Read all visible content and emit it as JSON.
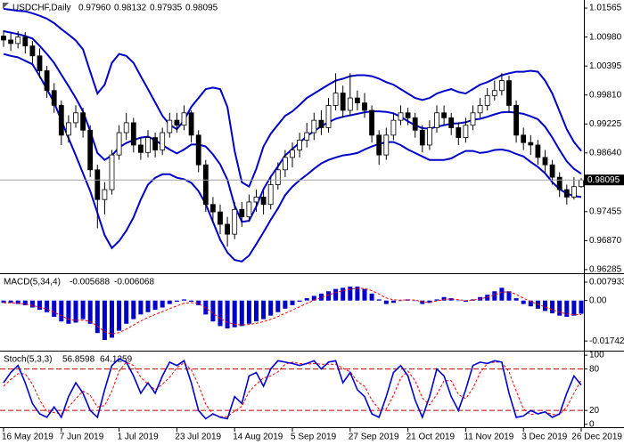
{
  "chart_data": [
    {
      "type": "candlestick",
      "title": "USDCHF,Daily",
      "ohlc_labels": [
        "0.97960",
        "0.98132",
        "0.97935",
        "0.98095"
      ],
      "x": [
        "16 May 2019",
        null,
        null,
        null,
        null,
        null,
        null,
        null,
        "7 Jun 2019",
        null,
        null,
        null,
        null,
        null,
        null,
        null,
        "1 Jul 2019",
        null,
        null,
        null,
        null,
        null,
        null,
        null,
        "23 Jul 2019",
        null,
        null,
        null,
        null,
        null,
        null,
        null,
        "14 Aug 2019",
        null,
        null,
        null,
        null,
        null,
        null,
        null,
        "5 Sep 2019",
        null,
        null,
        null,
        null,
        null,
        null,
        null,
        "27 Sep 2019",
        null,
        null,
        null,
        null,
        null,
        null,
        null,
        "21 Oct 2019",
        null,
        null,
        null,
        null,
        null,
        null,
        null,
        "11 Nov 2019",
        null,
        null,
        null,
        null,
        null,
        null,
        null,
        "3 Dec 2019",
        null,
        null,
        null,
        null,
        null,
        null,
        null,
        "26 Dec 2019"
      ],
      "open": [
        1.01,
        1.0092,
        1.0085,
        1.0098,
        1.008,
        1.006,
        1.003,
        0.999,
        0.996,
        0.99,
        0.9925,
        0.9945,
        0.991,
        0.983,
        0.977,
        0.979,
        0.986,
        0.9905,
        0.9925,
        0.988,
        0.9865,
        0.9895,
        0.987,
        0.9905,
        0.993,
        0.992,
        0.9945,
        0.99,
        0.984,
        0.976,
        0.9745,
        0.972,
        0.97,
        0.975,
        0.9735,
        0.9765,
        0.9775,
        0.976,
        0.98,
        0.983,
        0.9855,
        0.987,
        0.989,
        0.9905,
        0.993,
        0.9915,
        0.996,
        0.9985,
        0.995,
        0.9975,
        0.9965,
        0.995,
        0.99,
        0.986,
        0.99,
        0.993,
        0.9945,
        0.9935,
        0.991,
        0.988,
        0.9915,
        0.9945,
        0.9935,
        0.9915,
        0.9895,
        0.992,
        0.9945,
        0.996,
        0.998,
        0.999,
        1.001,
        0.996,
        0.99,
        0.9885,
        0.988,
        0.9855,
        0.984,
        0.9815,
        0.979,
        0.9775,
        0.9796
      ],
      "high": [
        1.0112,
        1.0105,
        1.011,
        1.0108,
        1.009,
        1.0075,
        1.004,
        1.0005,
        0.997,
        0.994,
        0.996,
        0.9955,
        0.992,
        0.984,
        0.9805,
        0.987,
        0.992,
        0.9945,
        0.9935,
        0.9895,
        0.991,
        0.9905,
        0.9915,
        0.9945,
        0.9945,
        0.996,
        0.995,
        0.991,
        0.985,
        0.9775,
        0.976,
        0.9735,
        0.9765,
        0.9765,
        0.978,
        0.979,
        0.979,
        0.9815,
        0.9845,
        0.987,
        0.9885,
        0.9905,
        0.9925,
        0.9945,
        0.995,
        0.9975,
        1.0025,
        1.0,
        1.0025,
        0.999,
        0.9985,
        0.996,
        0.991,
        0.9915,
        0.9945,
        0.996,
        0.9955,
        0.9945,
        0.992,
        0.993,
        0.996,
        0.996,
        0.9945,
        0.9925,
        0.9935,
        0.996,
        0.9975,
        0.9995,
        1.001,
        1.0025,
        1.002,
        0.997,
        0.9915,
        0.99,
        0.989,
        0.987,
        0.985,
        0.9825,
        0.98,
        0.9815,
        0.98132
      ],
      "low": [
        1.0078,
        1.007,
        1.0075,
        1.0065,
        1.0045,
        1.0015,
        0.9975,
        0.9945,
        0.988,
        0.9885,
        0.9915,
        0.9895,
        0.9815,
        0.9712,
        0.974,
        0.978,
        0.985,
        0.989,
        0.9865,
        0.985,
        0.9855,
        0.9855,
        0.986,
        0.9895,
        0.9905,
        0.991,
        0.9885,
        0.9825,
        0.9745,
        0.9725,
        0.97,
        0.9675,
        0.969,
        0.9715,
        0.9725,
        0.9745,
        0.974,
        0.975,
        0.979,
        0.9815,
        0.9835,
        0.9855,
        0.9875,
        0.989,
        0.99,
        0.9905,
        0.995,
        0.9935,
        0.994,
        0.995,
        0.9935,
        0.9885,
        0.984,
        0.985,
        0.989,
        0.992,
        0.992,
        0.9895,
        0.9865,
        0.987,
        0.9905,
        0.992,
        0.99,
        0.988,
        0.9885,
        0.991,
        0.9935,
        0.995,
        0.997,
        0.998,
        0.9945,
        0.9885,
        0.987,
        0.986,
        0.984,
        0.9825,
        0.98,
        0.9775,
        0.976,
        0.977,
        0.97935
      ],
      "close": [
        1.0092,
        1.0085,
        1.0098,
        1.008,
        1.006,
        1.003,
        0.999,
        0.996,
        0.99,
        0.9925,
        0.9945,
        0.991,
        0.983,
        0.977,
        0.979,
        0.986,
        0.9905,
        0.9925,
        0.988,
        0.9865,
        0.9895,
        0.987,
        0.9905,
        0.993,
        0.992,
        0.9945,
        0.99,
        0.984,
        0.976,
        0.9745,
        0.972,
        0.97,
        0.975,
        0.9735,
        0.9765,
        0.9775,
        0.976,
        0.98,
        0.983,
        0.9855,
        0.987,
        0.989,
        0.9905,
        0.993,
        0.9915,
        0.996,
        0.9985,
        0.995,
        0.9975,
        0.9965,
        0.995,
        0.99,
        0.986,
        0.99,
        0.993,
        0.9945,
        0.9935,
        0.991,
        0.988,
        0.9915,
        0.9945,
        0.9935,
        0.9915,
        0.9895,
        0.992,
        0.9945,
        0.996,
        0.998,
        0.999,
        1.001,
        0.996,
        0.99,
        0.9885,
        0.988,
        0.9855,
        0.984,
        0.9815,
        0.979,
        0.9775,
        0.9796,
        0.98095
      ],
      "color_up": "#ffffff",
      "color_down": "#000000",
      "bands": {
        "color": "#0000c8",
        "upper": [
          1.0155,
          1.0153,
          1.0151,
          1.015,
          1.0146,
          1.0141,
          1.0135,
          1.0126,
          1.0114,
          1.0103,
          1.0091,
          1.0073,
          1.0028,
          0.9984,
          1.0002,
          1.0046,
          1.0064,
          1.006,
          1.0046,
          1.0019,
          0.9993,
          0.9966,
          0.9939,
          0.9921,
          0.9912,
          0.993,
          0.9957,
          0.9975,
          0.9993,
          0.9996,
          0.9993,
          0.9957,
          0.9868,
          0.9805,
          0.9796,
          0.9832,
          0.9877,
          0.9903,
          0.9921,
          0.9939,
          0.9948,
          0.9961,
          0.9975,
          0.9984,
          0.9993,
          1.0002,
          1.001,
          1.0014,
          1.0019,
          1.0021,
          1.0021,
          1.0019,
          1.0014,
          1.0007,
          1.0002,
          0.9993,
          0.9984,
          0.9975,
          0.9971,
          0.9975,
          0.9984,
          0.9989,
          0.9993,
          0.9987,
          0.9984,
          0.9993,
          1.0002,
          1.0007,
          1.0014,
          1.0021,
          1.0025,
          1.0028,
          1.0028,
          1.003,
          1.0028,
          1.001,
          0.9984,
          0.9948,
          0.9912,
          0.9886,
          0.9868
        ],
        "middle": [
          1.011,
          1.0107,
          1.0104,
          1.01,
          1.0095,
          1.008,
          1.0064,
          1.0046,
          1.0022,
          0.9999,
          0.9975,
          0.9948,
          0.9908,
          0.9864,
          0.985,
          0.9859,
          0.9875,
          0.9884,
          0.989,
          0.9895,
          0.9897,
          0.989,
          0.988,
          0.9871,
          0.9863,
          0.9871,
          0.9881,
          0.9881,
          0.9877,
          0.9861,
          0.9841,
          0.981,
          0.9758,
          0.9725,
          0.9727,
          0.9756,
          0.9791,
          0.9816,
          0.9837,
          0.9859,
          0.9872,
          0.9885,
          0.9898,
          0.9908,
          0.9918,
          0.9926,
          0.9933,
          0.9937,
          0.994,
          0.9943,
          0.9946,
          0.9948,
          0.9948,
          0.9947,
          0.9944,
          0.9937,
          0.9928,
          0.992,
          0.9914,
          0.9913,
          0.9917,
          0.992,
          0.9923,
          0.9924,
          0.9926,
          0.9931,
          0.9933,
          0.9937,
          0.9942,
          0.9946,
          0.9947,
          0.9945,
          0.9943,
          0.9938,
          0.9932,
          0.9917,
          0.9895,
          0.987,
          0.9847,
          0.9832,
          0.9822
        ],
        "lower": [
          1.0064,
          1.006,
          1.0057,
          1.005,
          1.0043,
          1.0019,
          0.9993,
          0.9966,
          0.993,
          0.9894,
          0.9859,
          0.9823,
          0.9787,
          0.9743,
          0.9698,
          0.9672,
          0.9686,
          0.9707,
          0.9734,
          0.977,
          0.98,
          0.9814,
          0.9821,
          0.9821,
          0.9814,
          0.9811,
          0.9804,
          0.9787,
          0.9761,
          0.9725,
          0.9689,
          0.9663,
          0.9648,
          0.9645,
          0.9657,
          0.968,
          0.9704,
          0.9729,
          0.9752,
          0.9779,
          0.9796,
          0.9809,
          0.982,
          0.9832,
          0.9843,
          0.985,
          0.9855,
          0.9859,
          0.9861,
          0.9864,
          0.9871,
          0.9877,
          0.9882,
          0.9886,
          0.9886,
          0.988,
          0.9871,
          0.9864,
          0.9857,
          0.985,
          0.985,
          0.985,
          0.9853,
          0.9861,
          0.9868,
          0.9868,
          0.9864,
          0.9866,
          0.987,
          0.9871,
          0.9868,
          0.9862,
          0.9857,
          0.9846,
          0.9836,
          0.9823,
          0.9805,
          0.9791,
          0.9782,
          0.9777,
          0.9775
        ]
      },
      "price_line_color": "#a0a0a0",
      "ylim": [
        0.9623,
        1.0171
      ],
      "yticks": [
        1.01565,
        {
          "value": 1.0098,
          "label": "1.00980"
        },
        1.00395,
        {
          "value": 0.9981,
          "label": "0.99810"
        },
        0.99225,
        {
          "value": 0.9864,
          "label": "0.98640"
        },
        0.97455,
        {
          "value": 0.9687,
          "label": "0.96870"
        },
        0.96285
      ]
    },
    {
      "type": "macd",
      "title": "MACD(5,34,4)",
      "last_labels": [
        "-0.005688",
        "-0.006068"
      ],
      "histogram": [
        -0.001,
        -0.001,
        -0.0015,
        -0.002,
        -0.003,
        -0.004,
        -0.005,
        -0.007,
        -0.009,
        -0.01,
        -0.0095,
        -0.008,
        -0.01,
        -0.014,
        -0.017,
        -0.016,
        -0.013,
        -0.01,
        -0.008,
        -0.006,
        -0.005,
        -0.004,
        -0.003,
        -0.0015,
        -0.0005,
        0.0005,
        -0.0005,
        -0.002,
        -0.006,
        -0.009,
        -0.011,
        -0.012,
        -0.0115,
        -0.011,
        -0.01,
        -0.009,
        -0.008,
        -0.0065,
        -0.005,
        -0.0035,
        -0.002,
        -0.0005,
        0.001,
        0.002,
        0.003,
        0.004,
        0.005,
        0.0055,
        0.006,
        0.006,
        0.005,
        0.003,
        0.0005,
        -0.0015,
        -0.001,
        0,
        0.0005,
        0,
        -0.0015,
        -0.001,
        0.0005,
        0.0015,
        0.001,
        0,
        -0.0005,
        0.0005,
        0.0015,
        0.0025,
        0.004,
        0.0055,
        0.004,
        0.001,
        -0.0015,
        -0.0025,
        -0.0035,
        -0.0045,
        -0.0055,
        -0.0065,
        -0.007,
        -0.0065,
        -0.005688
      ],
      "signal": [
        -0.001,
        -0.001,
        -0.0012,
        -0.0015,
        -0.0021,
        -0.0029,
        -0.0037,
        -0.005,
        -0.0066,
        -0.008,
        -0.0086,
        -0.0084,
        -0.009,
        -0.011,
        -0.0134,
        -0.0144,
        -0.0138,
        -0.0123,
        -0.0106,
        -0.0088,
        -0.0073,
        -0.006,
        -0.0048,
        -0.0035,
        -0.0023,
        -0.0012,
        -0.0009,
        -0.0013,
        -0.0032,
        -0.0055,
        -0.0077,
        -0.0094,
        -0.0102,
        -0.0105,
        -0.0103,
        -0.0098,
        -0.0091,
        -0.0081,
        -0.0069,
        -0.0055,
        -0.0041,
        -0.0027,
        -0.0012,
        0.0001,
        0.0013,
        0.0024,
        0.0034,
        0.0042,
        0.0049,
        0.0053,
        0.0052,
        0.0043,
        0.0028,
        0.0011,
        0.0003,
        0.0002,
        0.0003,
        0.0002,
        -0.0005,
        -0.0007,
        -0.0002,
        0.0005,
        0.0007,
        0.0004,
        0,
        0.0002,
        0.0007,
        0.0014,
        0.0024,
        0.0036,
        0.0038,
        0.0027,
        0.001,
        -0.0004,
        -0.0016,
        -0.0028,
        -0.0039,
        -0.005,
        -0.0058,
        -0.0061,
        -0.006068
      ],
      "histogram_color": "#0000cc",
      "signal_color": "#ff0000",
      "ylim": [
        -0.0212,
        0.011
      ],
      "yticks": [
        0.007933,
        {
          "value": 0,
          "label": "0.00"
        },
        -0.017421
      ]
    },
    {
      "type": "stochastic",
      "title": "Stoch(5,3,3)",
      "last_labels": [
        "56.8598",
        "64.1259"
      ],
      "k": [
        60,
        75,
        85,
        60,
        30,
        15,
        10,
        25,
        10,
        40,
        60,
        45,
        20,
        10,
        50,
        85,
        95,
        90,
        70,
        45,
        60,
        45,
        70,
        90,
        85,
        92,
        60,
        20,
        8,
        15,
        10,
        8,
        40,
        30,
        70,
        75,
        55,
        80,
        92,
        90,
        88,
        85,
        88,
        92,
        80,
        90,
        92,
        60,
        75,
        50,
        40,
        15,
        10,
        40,
        75,
        85,
        70,
        35,
        10,
        40,
        80,
        70,
        40,
        20,
        50,
        85,
        90,
        88,
        92,
        90,
        45,
        10,
        12,
        20,
        15,
        18,
        10,
        15,
        45,
        70,
        56.8598
      ],
      "d": [
        55,
        65,
        73,
        73,
        58,
        35,
        18,
        17,
        15,
        25,
        37,
        48,
        42,
        25,
        27,
        48,
        77,
        90,
        85,
        68,
        58,
        50,
        58,
        68,
        82,
        89,
        79,
        57,
        29,
        14,
        11,
        11,
        19,
        26,
        47,
        58,
        67,
        70,
        76,
        87,
        90,
        88,
        87,
        88,
        87,
        87,
        87,
        81,
        76,
        62,
        55,
        35,
        22,
        22,
        42,
        67,
        77,
        63,
        38,
        28,
        43,
        63,
        63,
        43,
        37,
        52,
        75,
        88,
        90,
        90,
        76,
        48,
        22,
        14,
        16,
        18,
        14,
        14,
        25,
        45,
        64.1259
      ],
      "k_color": "#0000cc",
      "d_color": "#ff0000",
      "levels": [
        80,
        20
      ],
      "ylim": [
        -3,
        104
      ],
      "yticks": [
        100,
        80,
        20,
        0
      ]
    }
  ]
}
